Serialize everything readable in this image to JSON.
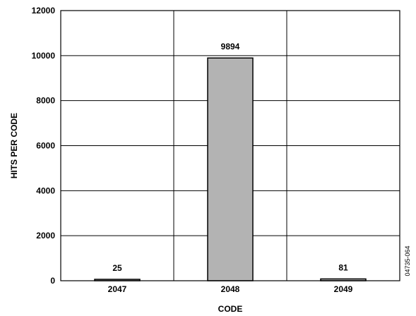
{
  "chart_data": {
    "type": "bar",
    "categories": [
      "2047",
      "2048",
      "2049"
    ],
    "values": [
      25,
      9894,
      81
    ],
    "data_labels": [
      "25",
      "9894",
      "81"
    ],
    "xlabel": "CODE",
    "ylabel": "HITS PER CODE",
    "ylim": [
      0,
      12000
    ],
    "yticks": [
      "0",
      "2000",
      "4000",
      "6000",
      "8000",
      "10000",
      "12000"
    ],
    "grid": true,
    "bar_color": "#b3b3b3",
    "figure_id": "04735-064"
  }
}
